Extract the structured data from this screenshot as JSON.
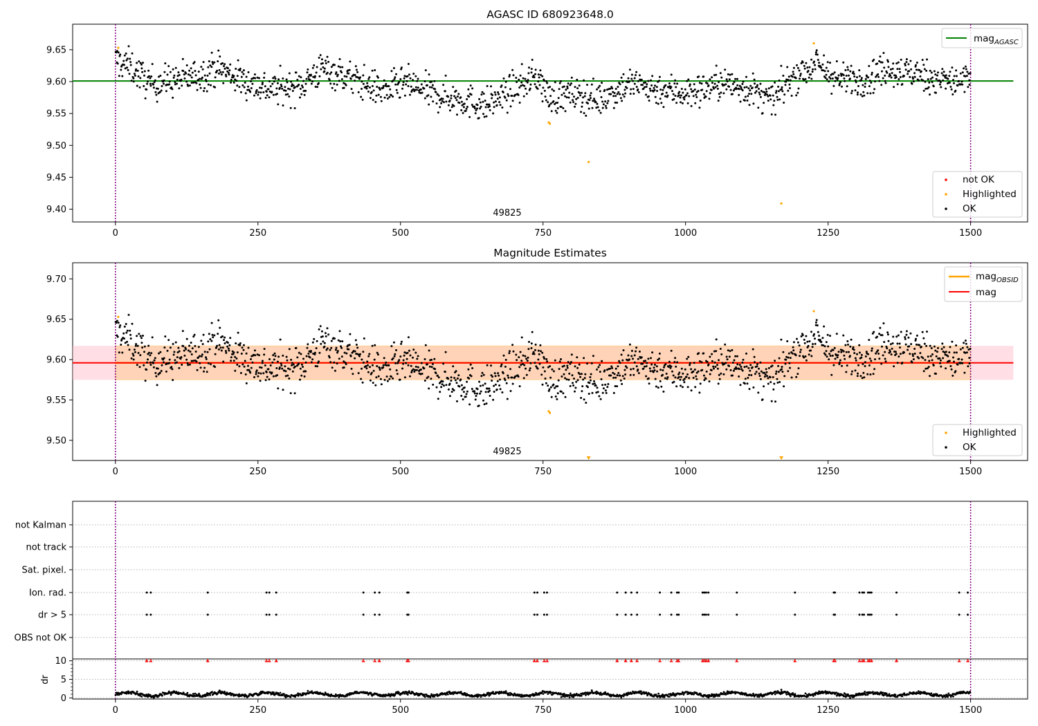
{
  "chart_data": [
    {
      "type": "scatter",
      "title": "AGASC ID 680923648.0",
      "xlim": [
        -75,
        1600
      ],
      "ylim": [
        9.38,
        9.69
      ],
      "xticks": [
        "0",
        "250",
        "500",
        "750",
        "1000",
        "1250",
        "1500"
      ],
      "yticks": [
        "9.40",
        "9.45",
        "9.50",
        "9.55",
        "9.60",
        "9.65"
      ],
      "grid": false,
      "obsid_label": "49825",
      "obsid_label_position": 750,
      "obsid_boundaries": [
        0,
        1500
      ],
      "reference_line": {
        "label_main": "mag",
        "label_sub": "AGASC",
        "value": 9.601,
        "xrange": [
          -75,
          1575
        ],
        "color": "#008000"
      },
      "series": [
        {
          "name": "not OK",
          "color": "#ff0000",
          "values": []
        },
        {
          "name": "Highlighted",
          "color": "#ffa500",
          "values": [
            [
              5,
              9.653
            ],
            [
              760,
              9.536
            ],
            [
              762,
              9.534
            ],
            [
              830,
              9.474
            ],
            [
              1168,
              9.409
            ],
            [
              1225,
              9.66
            ]
          ]
        },
        {
          "name": "OK",
          "color": "#000000",
          "note": "~1500 noisy measurements, mean 9.60, scatter 0.02"
        }
      ],
      "legend_upper": "top-right",
      "legend_lower": "bottom-right",
      "colors": {
        "ok": "#000000",
        "highlighted": "#ffa500",
        "not_ok": "#ff0000",
        "agasc_line": "#008000",
        "obsid_boundary": "#800080"
      }
    },
    {
      "type": "scatter",
      "title": "Magnitude Estimates",
      "xlim": [
        -75,
        1600
      ],
      "ylim": [
        9.475,
        9.72
      ],
      "xticks": [
        "0",
        "250",
        "500",
        "750",
        "1000",
        "1250",
        "1500"
      ],
      "yticks": [
        "9.50",
        "9.55",
        "9.60",
        "9.65",
        "9.70"
      ],
      "grid": false,
      "obsid_label": "49825",
      "obsid_label_position": 750,
      "mag": {
        "label": "mag",
        "value": 9.596,
        "band": [
          9.575,
          9.617
        ],
        "xrange": [
          -75,
          1575
        ],
        "color": "#ff0000"
      },
      "mag_obsid": {
        "label_main": "mag",
        "label_sub": "OBSID",
        "value": 9.596,
        "band": [
          9.575,
          9.617
        ],
        "xrange": [
          0,
          1500
        ],
        "color": "#ffa500"
      },
      "highlighted_offscale": [
        830,
        1168
      ],
      "series": [
        {
          "name": "Highlighted",
          "color": "#ffa500",
          "values": [
            [
              5,
              9.653
            ],
            [
              760,
              9.536
            ],
            [
              762,
              9.534
            ],
            [
              1225,
              9.66
            ]
          ]
        },
        {
          "name": "OK",
          "color": "#000000"
        }
      ],
      "legend_upper": "top-right",
      "legend_lower": "bottom-right"
    },
    {
      "type": "scatter",
      "title": "",
      "xlim": [
        -75,
        1600
      ],
      "xticks": [
        "0",
        "250",
        "500",
        "750",
        "1000",
        "1250",
        "1500"
      ],
      "flag_rows": [
        "not Kalman",
        "not track",
        "Sat. pixel.",
        "Ion. rad.",
        "dr > 5",
        "OBS not OK"
      ],
      "flagged_x": [
        55,
        62,
        162,
        265,
        270,
        282,
        435,
        455,
        463,
        512,
        514,
        735,
        740,
        752,
        757,
        880,
        895,
        905,
        915,
        955,
        975,
        985,
        988,
        1030,
        1033,
        1036,
        1040,
        1090,
        1192,
        1260,
        1262,
        1305,
        1310,
        1313,
        1320,
        1323,
        1326,
        1370,
        1480,
        1495
      ],
      "dr": {
        "ylabel": "dr",
        "ylim": [
          -0.3,
          10.5
        ],
        "yticks": [
          "0",
          "5",
          "10"
        ],
        "baseline": 1.0,
        "outlier": [
          1168,
          2.2
        ],
        "clip_value": 10
      }
    }
  ]
}
